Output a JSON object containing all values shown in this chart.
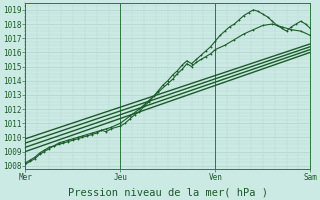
{
  "bg_color": "#cceae4",
  "grid_color": "#aacfc8",
  "line_color": "#1a5c28",
  "ylim": [
    1007.8,
    1019.5
  ],
  "xlim": [
    0,
    3.0
  ],
  "xlabel": "Pression niveau de la mer( hPa )",
  "xtick_labels": [
    "Mer",
    "Jeu",
    "Ven",
    "Sam"
  ],
  "xtick_positions": [
    0,
    1,
    2,
    3
  ],
  "ylabel_values": [
    1008,
    1009,
    1010,
    1011,
    1012,
    1013,
    1014,
    1015,
    1016,
    1017,
    1018,
    1019
  ],
  "axis_fontsize": 5.5,
  "xlabel_fontsize": 7.5,
  "series": [
    {
      "x": [
        0.0,
        0.05,
        0.1,
        0.15,
        0.2,
        0.25,
        0.3,
        0.35,
        0.4,
        0.45,
        0.5,
        0.55,
        0.6,
        0.65,
        0.7,
        0.75,
        0.8,
        0.85,
        0.9,
        1.0,
        1.05,
        1.1,
        1.15,
        1.2,
        1.25,
        1.3,
        1.35,
        1.4,
        1.45,
        1.5,
        1.55,
        1.6,
        1.65,
        1.7,
        1.75,
        1.8,
        1.85,
        1.9,
        1.95,
        2.0,
        2.05,
        2.1,
        2.15,
        2.2,
        2.25,
        2.3,
        2.35,
        2.4,
        2.45,
        2.5,
        2.55,
        2.6,
        2.65,
        2.7,
        2.75,
        2.8,
        2.85,
        2.9,
        2.95,
        3.0
      ],
      "y": [
        1008.1,
        1008.3,
        1008.5,
        1008.8,
        1009.0,
        1009.2,
        1009.4,
        1009.5,
        1009.6,
        1009.7,
        1009.8,
        1009.9,
        1010.0,
        1010.1,
        1010.2,
        1010.3,
        1010.5,
        1010.4,
        1010.6,
        1010.8,
        1011.0,
        1011.3,
        1011.6,
        1011.8,
        1012.2,
        1012.5,
        1012.9,
        1013.3,
        1013.7,
        1014.0,
        1014.4,
        1014.7,
        1015.1,
        1015.4,
        1015.2,
        1015.5,
        1015.8,
        1016.1,
        1016.4,
        1016.8,
        1017.2,
        1017.5,
        1017.8,
        1018.0,
        1018.3,
        1018.6,
        1018.8,
        1019.0,
        1018.9,
        1018.7,
        1018.5,
        1018.2,
        1017.9,
        1017.7,
        1017.5,
        1017.8,
        1018.0,
        1018.2,
        1018.0,
        1017.7
      ],
      "marker": "+",
      "markersize": 2.0,
      "lw": 0.8
    },
    {
      "x": [
        0.0,
        0.05,
        0.1,
        0.15,
        0.2,
        0.25,
        0.3,
        0.35,
        0.4,
        0.45,
        0.5,
        0.55,
        0.6,
        0.65,
        0.7,
        0.75,
        0.8,
        0.85,
        0.9,
        1.0,
        1.1,
        1.2,
        1.3,
        1.4,
        1.5,
        1.55,
        1.6,
        1.65,
        1.7,
        1.75,
        1.8,
        1.85,
        1.9,
        1.95,
        2.0,
        2.1,
        2.2,
        2.3,
        2.4,
        2.5,
        2.6,
        2.7,
        2.8,
        2.9,
        3.0
      ],
      "y": [
        1008.2,
        1008.4,
        1008.6,
        1008.9,
        1009.1,
        1009.3,
        1009.4,
        1009.6,
        1009.7,
        1009.8,
        1009.9,
        1010.0,
        1010.1,
        1010.2,
        1010.3,
        1010.4,
        1010.5,
        1010.6,
        1010.7,
        1011.0,
        1011.5,
        1012.0,
        1012.6,
        1013.2,
        1013.8,
        1014.1,
        1014.5,
        1014.8,
        1015.2,
        1015.0,
        1015.3,
        1015.5,
        1015.7,
        1015.9,
        1016.2,
        1016.5,
        1016.9,
        1017.3,
        1017.6,
        1017.9,
        1018.0,
        1017.8,
        1017.6,
        1017.5,
        1017.2
      ],
      "marker": "+",
      "markersize": 2.0,
      "lw": 0.8
    },
    {
      "x": [
        0.0,
        3.0
      ],
      "y": [
        1009.0,
        1016.0
      ],
      "marker": null,
      "markersize": 0,
      "lw": 1.0
    },
    {
      "x": [
        0.0,
        3.0
      ],
      "y": [
        1009.3,
        1016.2
      ],
      "marker": null,
      "markersize": 0,
      "lw": 1.0
    },
    {
      "x": [
        0.0,
        3.0
      ],
      "y": [
        1009.6,
        1016.4
      ],
      "marker": null,
      "markersize": 0,
      "lw": 1.0
    },
    {
      "x": [
        0.0,
        3.0
      ],
      "y": [
        1009.9,
        1016.6
      ],
      "marker": null,
      "markersize": 0,
      "lw": 1.0
    }
  ],
  "vline_positions": [
    0,
    1,
    2,
    3
  ],
  "vline_color": "#2a7840"
}
